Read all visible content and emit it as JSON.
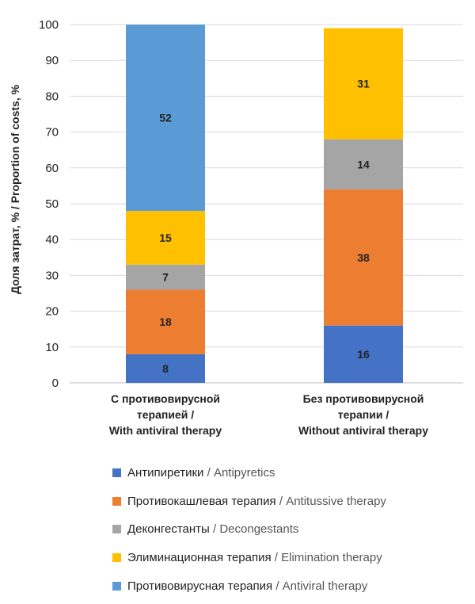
{
  "chart_data": {
    "type": "bar",
    "stacked": true,
    "ylabel": "Доля затрат, % / Proportion of costs, %",
    "ylim": [
      0,
      100
    ],
    "yticks": [
      0,
      10,
      20,
      30,
      40,
      50,
      60,
      70,
      80,
      90,
      100
    ],
    "grid": true,
    "legend_position": "bottom",
    "categories": [
      [
        "С противовирусной",
        "терапией /",
        "With antiviral therapy"
      ],
      [
        "Без противовирусной",
        "терапии /",
        "Without antiviral therapy"
      ]
    ],
    "series": [
      {
        "name": "Антипиретики / Antipyretics",
        "name_ru": "Антипиретики",
        "name_en": "Antipyretics",
        "color": "#4472C4",
        "values": [
          8,
          16
        ]
      },
      {
        "name": "Противокашлевая терапия / Antitussive therapy",
        "name_ru": "Противокашлевая терапия",
        "name_en": "Antitussive therapy",
        "color": "#ED7D31",
        "values": [
          18,
          38
        ]
      },
      {
        "name": "Деконгестанты / Decongestants",
        "name_ru": "Деконгестанты",
        "name_en": "Decongestants",
        "color": "#A5A5A5",
        "values": [
          7,
          14
        ]
      },
      {
        "name": "Элиминационная терапия / Elimination therapy",
        "name_ru": "Элиминационная терапия",
        "name_en": "Elimination therapy",
        "color": "#FFC000",
        "values": [
          15,
          31
        ]
      },
      {
        "name": "Противовирусная терапия / Antiviral therapy",
        "name_ru": "Противовирусная терапия",
        "name_en": "Antiviral therapy",
        "color": "#5B9BD5",
        "values": [
          52,
          0
        ]
      }
    ]
  }
}
